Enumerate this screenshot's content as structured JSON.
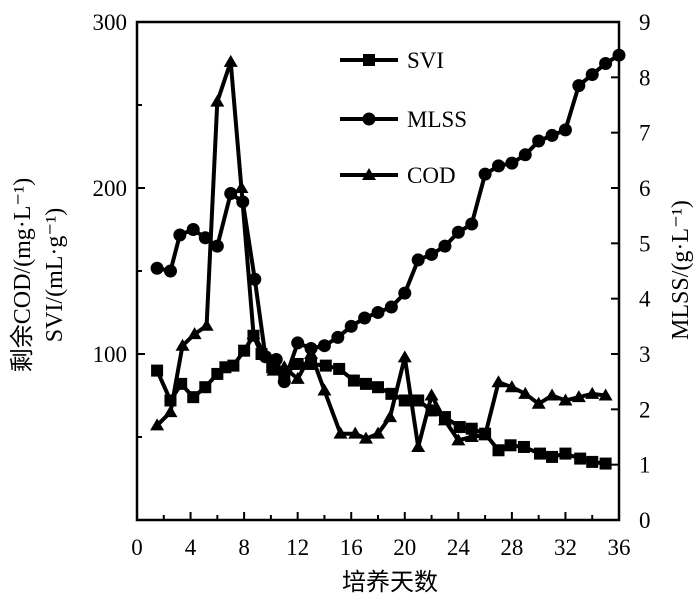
{
  "chart_data": {
    "type": "line",
    "xlabel": "培养天数",
    "ylabel_left_line1": "剩余COD/(mg·L⁻¹)",
    "ylabel_left_line2": "SVI/(mL·g⁻¹)",
    "ylabel_right": "MLSS/(g·L⁻¹)",
    "xlim": [
      0,
      36
    ],
    "ylim_left": [
      0,
      300
    ],
    "ylim_right": [
      0,
      9
    ],
    "x_ticks": [
      "0",
      "4",
      "8",
      "12",
      "16",
      "20",
      "24",
      "28",
      "32",
      "36"
    ],
    "y_left_ticks": [
      "100",
      "200",
      "300"
    ],
    "y_right_ticks": [
      "0",
      "1",
      "2",
      "3",
      "4",
      "5",
      "6",
      "7",
      "8",
      "9"
    ],
    "grid": false,
    "legend_position": "top-center",
    "series": [
      {
        "name": "SVI",
        "axis": "left",
        "marker": "square",
        "x": [
          1.5,
          2.5,
          3.3,
          4.2,
          5.1,
          6.0,
          6.6,
          7.2,
          8.0,
          8.7,
          9.3,
          10.1,
          11.0,
          12.0,
          13.0,
          14.1,
          15.1,
          16.2,
          17.1,
          18.0,
          19.0,
          20.0,
          21.0,
          22.0,
          23.0,
          24.1,
          25.0,
          26.0,
          27.0,
          27.9,
          28.9,
          30.1,
          31.0,
          32.0,
          33.1,
          34.0,
          35.0
        ],
        "y": [
          90,
          72,
          82,
          74,
          80,
          88,
          92,
          93,
          102,
          111,
          100,
          92,
          88,
          94,
          94,
          93,
          91,
          84,
          82,
          80,
          76,
          72,
          72,
          66,
          62,
          56,
          55,
          52,
          42,
          45,
          44,
          40,
          38,
          40,
          37,
          35,
          34
        ]
      },
      {
        "name": "MLSS",
        "axis": "right",
        "marker": "circle",
        "x": [
          1.5,
          2.5,
          3.2,
          4.2,
          5.1,
          6.0,
          7.0,
          7.9,
          8.8,
          9.6,
          10.4,
          11.0,
          12.0,
          13.0,
          14.0,
          15.0,
          16.0,
          17.0,
          18.0,
          19.0,
          20.0,
          21.0,
          22.0,
          23.0,
          24.0,
          25.0,
          26.0,
          27.0,
          28.0,
          29.0,
          30.0,
          31.0,
          32.0,
          33.0,
          34.0,
          35.0,
          36.0
        ],
        "y": [
          4.55,
          4.5,
          5.15,
          5.25,
          5.1,
          4.95,
          5.9,
          5.75,
          4.35,
          2.95,
          2.9,
          2.5,
          3.2,
          3.1,
          3.15,
          3.3,
          3.5,
          3.65,
          3.75,
          3.85,
          4.1,
          4.7,
          4.8,
          4.95,
          5.2,
          5.35,
          6.25,
          6.4,
          6.45,
          6.6,
          6.85,
          6.95,
          7.05,
          7.85,
          8.05,
          8.25,
          8.4
        ]
      },
      {
        "name": "COD",
        "axis": "left",
        "marker": "triangle",
        "x": [
          1.5,
          2.5,
          3.4,
          4.3,
          5.2,
          6.0,
          7.0,
          7.8,
          8.7,
          9.5,
          10.2,
          11.0,
          12.0,
          13.0,
          14.0,
          15.2,
          16.3,
          17.1,
          18.0,
          18.9,
          20.0,
          21.0,
          22.0,
          23.0,
          24.0,
          25.0,
          26.0,
          27.0,
          28.0,
          29.0,
          30.0,
          31.0,
          32.0,
          33.0,
          34.0,
          35.0
        ],
        "y": [
          57,
          65,
          105,
          112,
          117,
          252,
          276,
          200,
          112,
          100,
          90,
          92,
          85,
          100,
          78,
          52,
          52,
          49,
          52,
          62,
          98,
          44,
          75,
          60,
          48,
          50,
          51,
          83,
          80,
          76,
          70,
          75,
          72,
          74,
          76,
          75
        ]
      }
    ]
  }
}
